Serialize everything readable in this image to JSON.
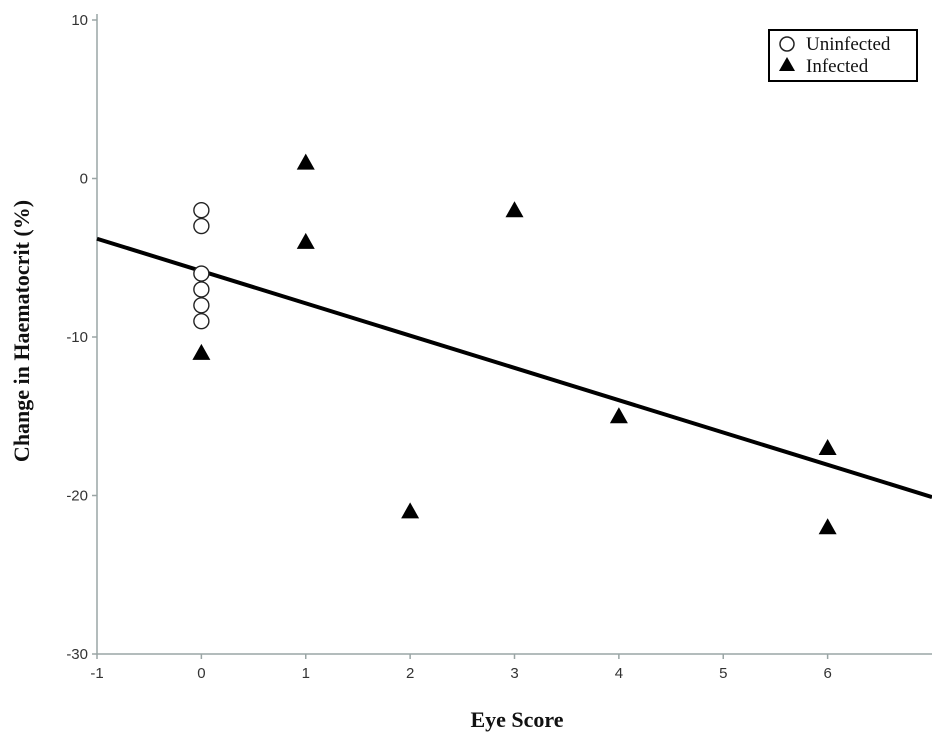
{
  "chart_data": {
    "type": "scatter",
    "xlabel": "Eye Score",
    "ylabel": "Change in Haematocrit (%)",
    "xlim": [
      -1,
      7
    ],
    "ylim": [
      -30,
      10
    ],
    "x_ticks": [
      -1,
      0,
      1,
      2,
      3,
      4,
      5,
      6
    ],
    "y_ticks": [
      -30,
      -20,
      -10,
      0,
      10
    ],
    "grid": false,
    "legend_position": "top-right",
    "series": [
      {
        "name": "Uninfected",
        "marker": "open-circle",
        "color": "#222222",
        "points": [
          {
            "x": 0,
            "y": -2
          },
          {
            "x": 0,
            "y": -3
          },
          {
            "x": 0,
            "y": -6
          },
          {
            "x": 0,
            "y": -7
          },
          {
            "x": 0,
            "y": -8
          },
          {
            "x": 0,
            "y": -9
          }
        ]
      },
      {
        "name": "Infected",
        "marker": "filled-triangle",
        "color": "#000000",
        "points": [
          {
            "x": 0,
            "y": -11
          },
          {
            "x": 1,
            "y": 1
          },
          {
            "x": 1,
            "y": -4
          },
          {
            "x": 2,
            "y": -21
          },
          {
            "x": 3,
            "y": -2
          },
          {
            "x": 4,
            "y": -15
          },
          {
            "x": 6,
            "y": -17
          },
          {
            "x": 6,
            "y": -22
          }
        ]
      }
    ],
    "trend_line": {
      "x": [
        -1,
        7
      ],
      "y": [
        -3.8,
        -20.1
      ]
    }
  }
}
